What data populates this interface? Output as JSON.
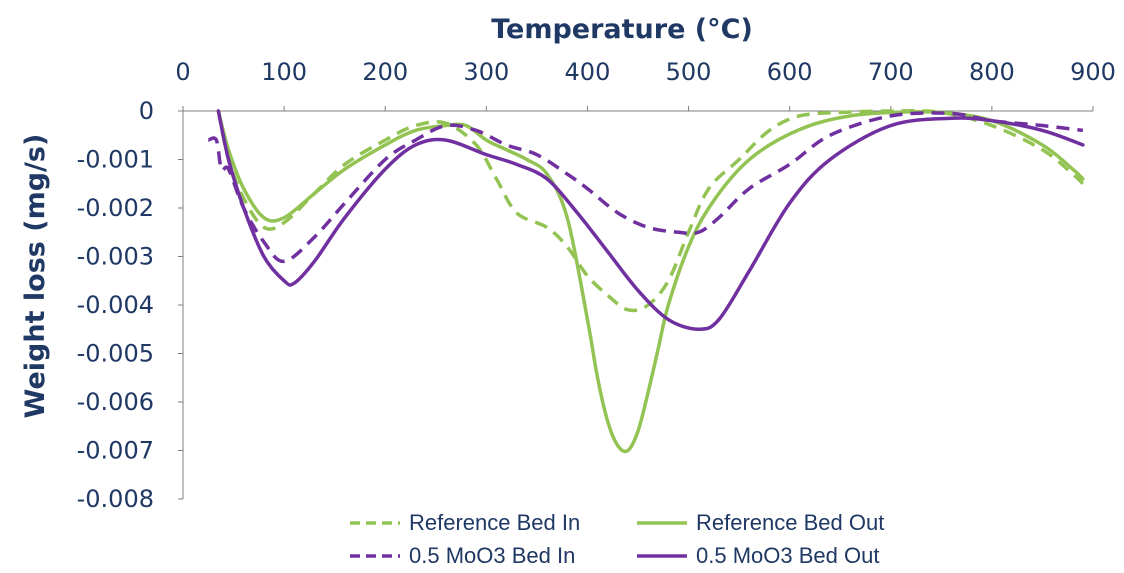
{
  "chart_data": {
    "type": "line",
    "xlabel": "Temperature (°C)",
    "ylabel": "Weight loss (mg/s)",
    "xlim": [
      0,
      900
    ],
    "ylim": [
      -0.008,
      0
    ],
    "x_ticks": [
      0,
      100,
      200,
      300,
      400,
      500,
      600,
      700,
      800,
      900
    ],
    "y_ticks": [
      0,
      -0.001,
      -0.002,
      -0.003,
      -0.004,
      -0.005,
      -0.006,
      -0.007,
      -0.008
    ],
    "y_tick_labels": [
      "0",
      "-0.001",
      "-0.002",
      "-0.003",
      "-0.004",
      "-0.005",
      "-0.006",
      "-0.007",
      "-0.008"
    ],
    "x_axis_position": "top",
    "grid": false,
    "legend_position": "bottom",
    "series": [
      {
        "name": "Reference Bed In",
        "color": "#92C353",
        "dash": "dashed",
        "x": [
          35,
          45,
          60,
          80,
          100,
          130,
          160,
          200,
          230,
          260,
          290,
          310,
          330,
          360,
          380,
          400,
          420,
          440,
          460,
          480,
          500,
          520,
          550,
          580,
          610,
          650,
          700,
          750,
          800,
          850,
          880,
          890
        ],
        "y": [
          0.0,
          -0.001,
          -0.0018,
          -0.0024,
          -0.0023,
          -0.0017,
          -0.0011,
          -0.0006,
          -0.0003,
          -0.00025,
          -0.0007,
          -0.0014,
          -0.0021,
          -0.0024,
          -0.0028,
          -0.0034,
          -0.0038,
          -0.0041,
          -0.004,
          -0.0035,
          -0.0025,
          -0.0016,
          -0.001,
          -0.0004,
          -0.0001,
          -3e-05,
          0.0,
          -3e-05,
          -0.0003,
          -0.0008,
          -0.0013,
          -0.0015
        ]
      },
      {
        "name": "Reference Bed Out",
        "color": "#92C353",
        "dash": "solid",
        "x": [
          35,
          45,
          60,
          80,
          100,
          130,
          160,
          200,
          230,
          260,
          280,
          300,
          320,
          340,
          360,
          380,
          400,
          410,
          420,
          430,
          440,
          450,
          460,
          470,
          480,
          500,
          520,
          550,
          580,
          620,
          660,
          700,
          750,
          800,
          850,
          880,
          890
        ],
        "y": [
          0.0,
          -0.0008,
          -0.0016,
          -0.0022,
          -0.0022,
          -0.0017,
          -0.0012,
          -0.0007,
          -0.0004,
          -0.0003,
          -0.0003,
          -0.0006,
          -0.0008,
          -0.001,
          -0.0013,
          -0.0022,
          -0.0043,
          -0.0055,
          -0.0064,
          -0.0069,
          -0.007,
          -0.0066,
          -0.0058,
          -0.0049,
          -0.004,
          -0.0028,
          -0.002,
          -0.0012,
          -0.0007,
          -0.0003,
          -0.0001,
          -3e-05,
          -3e-05,
          -0.0002,
          -0.0007,
          -0.0012,
          -0.0014
        ]
      },
      {
        "name": "0.5 MoO3 Bed In",
        "color": "#7030A0",
        "dash": "dashed",
        "x": [
          25,
          33,
          38,
          45,
          60,
          80,
          100,
          130,
          160,
          200,
          230,
          260,
          290,
          320,
          350,
          380,
          400,
          430,
          460,
          490,
          510,
          530,
          560,
          600,
          640,
          700,
          760,
          800,
          850,
          890
        ],
        "y": [
          -0.0006,
          -0.0006,
          -0.0012,
          -0.0012,
          -0.002,
          -0.0027,
          -0.0031,
          -0.0026,
          -0.0019,
          -0.001,
          -0.0006,
          -0.0003,
          -0.0004,
          -0.0007,
          -0.0009,
          -0.0013,
          -0.0016,
          -0.0021,
          -0.0024,
          -0.0025,
          -0.0025,
          -0.0022,
          -0.0016,
          -0.0011,
          -0.0005,
          -0.0001,
          -5e-05,
          -0.0002,
          -0.0003,
          -0.0004
        ]
      },
      {
        "name": "0.5 MoO3 Bed Out",
        "color": "#7030A0",
        "dash": "solid",
        "x": [
          35,
          45,
          60,
          80,
          100,
          110,
          130,
          160,
          200,
          230,
          260,
          300,
          330,
          360,
          390,
          420,
          450,
          480,
          510,
          530,
          560,
          600,
          640,
          700,
          760,
          800,
          850,
          890
        ],
        "y": [
          0.0,
          -0.001,
          -0.002,
          -0.003,
          -0.0035,
          -0.00355,
          -0.0031,
          -0.0022,
          -0.0012,
          -0.0007,
          -0.0006,
          -0.0009,
          -0.0011,
          -0.0014,
          -0.0021,
          -0.0029,
          -0.0037,
          -0.0043,
          -0.0045,
          -0.0043,
          -0.0033,
          -0.0019,
          -0.001,
          -0.0003,
          -0.00015,
          -0.0002,
          -0.0004,
          -0.0007
        ]
      }
    ]
  }
}
